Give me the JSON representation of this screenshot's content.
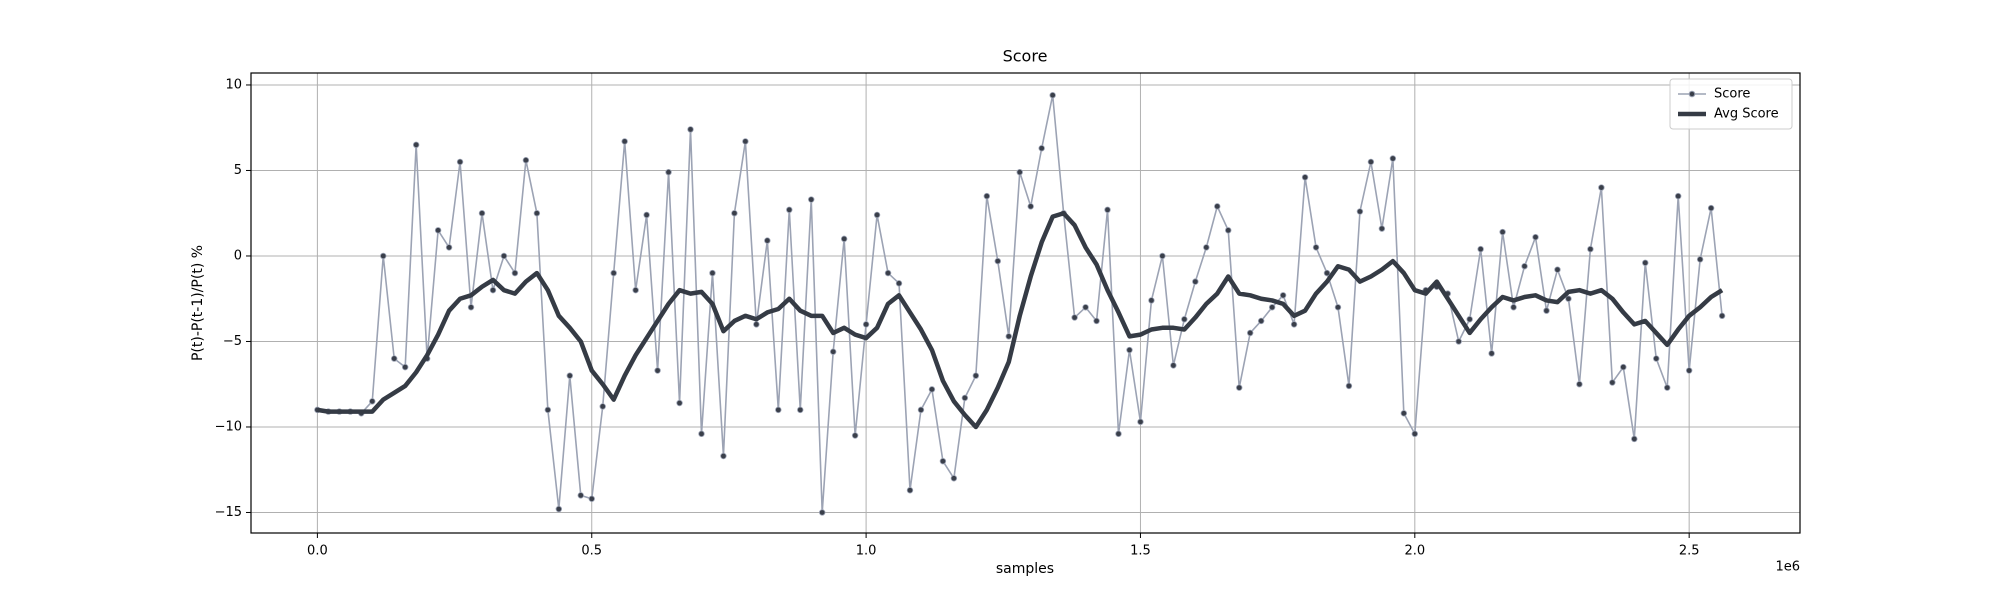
{
  "chart_data": {
    "type": "line",
    "title": "Score",
    "xlabel": "samples",
    "ylabel": "P(t)-P(t-1)/P(t) %",
    "x_offset_label": "1e6",
    "xlim": [
      -121000,
      2702000
    ],
    "ylim": [
      -16.2,
      10.7
    ],
    "xticks": [
      {
        "value": 0,
        "label": "0.0"
      },
      {
        "value": 500000,
        "label": "0.5"
      },
      {
        "value": 1000000,
        "label": "1.0"
      },
      {
        "value": 1500000,
        "label": "1.5"
      },
      {
        "value": 2000000,
        "label": "2.0"
      },
      {
        "value": 2500000,
        "label": "2.5"
      }
    ],
    "yticks": [
      {
        "value": -15,
        "label": "−15"
      },
      {
        "value": -10,
        "label": "−10"
      },
      {
        "value": -5,
        "label": "−5"
      },
      0,
      5,
      10
    ],
    "grid": true,
    "legend_loc": "upper right",
    "x": [
      0,
      20000,
      40000,
      60000,
      80000,
      100000,
      120000,
      140000,
      160000,
      180000,
      200000,
      220000,
      240000,
      260000,
      280000,
      300000,
      320000,
      340000,
      360000,
      380000,
      400000,
      420000,
      440000,
      460000,
      480000,
      500000,
      520000,
      540000,
      560000,
      580000,
      600000,
      620000,
      640000,
      660000,
      680000,
      700000,
      720000,
      740000,
      760000,
      780000,
      800000,
      820000,
      840000,
      860000,
      880000,
      900000,
      920000,
      940000,
      960000,
      980000,
      1000000,
      1020000,
      1040000,
      1060000,
      1080000,
      1100000,
      1120000,
      1140000,
      1160000,
      1180000,
      1200000,
      1220000,
      1240000,
      1260000,
      1280000,
      1300000,
      1320000,
      1340000,
      1360000,
      1380000,
      1400000,
      1420000,
      1440000,
      1460000,
      1480000,
      1500000,
      1520000,
      1540000,
      1560000,
      1580000,
      1600000,
      1620000,
      1640000,
      1660000,
      1680000,
      1700000,
      1720000,
      1740000,
      1760000,
      1780000,
      1800000,
      1820000,
      1840000,
      1860000,
      1880000,
      1900000,
      1920000,
      1940000,
      1960000,
      1980000,
      2000000,
      2020000,
      2040000,
      2060000,
      2080000,
      2100000,
      2120000,
      2140000,
      2160000,
      2180000,
      2200000,
      2220000,
      2240000,
      2260000,
      2280000,
      2300000,
      2320000,
      2340000,
      2360000,
      2380000,
      2400000,
      2420000,
      2440000,
      2460000,
      2480000,
      2500000,
      2520000,
      2540000,
      2560000
    ],
    "series": [
      {
        "name": "Score",
        "color": "#9ca3b4",
        "marker_color": "#3a3f4a",
        "marker": true,
        "values": [
          -9,
          -9.1,
          -9.1,
          -9.1,
          -9.2,
          -8.5,
          0,
          -6,
          -6.5,
          6.5,
          -6,
          1.5,
          0.5,
          5.5,
          -3,
          2.5,
          -2,
          0,
          -1,
          5.6,
          2.5,
          -9,
          -14.8,
          -7,
          -14,
          -14.2,
          -8.8,
          -1,
          6.7,
          -2,
          2.4,
          -6.7,
          4.9,
          -8.6,
          7.4,
          -10.4,
          -1,
          -11.7,
          2.5,
          6.7,
          -4,
          0.9,
          -9,
          2.7,
          -9,
          3.3,
          -15,
          -5.6,
          1,
          -10.5,
          -4,
          2.4,
          -1,
          -1.6,
          -13.7,
          -9,
          -7.8,
          -12,
          -13,
          -8.3,
          -7,
          3.5,
          -0.3,
          -4.7,
          4.9,
          2.9,
          6.3,
          9.4,
          2.5,
          -3.6,
          -3,
          -3.8,
          2.7,
          -10.4,
          -5.5,
          -9.7,
          -2.6,
          0,
          -6.4,
          -3.7,
          -1.5,
          0.5,
          2.9,
          1.5,
          -7.7,
          -4.5,
          -3.8,
          -3,
          -2.3,
          -4,
          4.6,
          0.5,
          -1,
          -3,
          -7.6,
          2.6,
          5.5,
          1.6,
          5.7,
          -9.2,
          -10.4,
          -2,
          -1.8,
          -2.2,
          -5,
          -3.7,
          0.4,
          -5.7,
          1.4,
          -3,
          -0.6,
          1.1,
          -3.2,
          -0.8,
          -2.5,
          -7.5,
          0.4,
          4,
          -7.4,
          -6.5,
          -10.7,
          -0.4,
          -6,
          -7.7,
          3.5,
          -6.7,
          -0.2,
          2.8,
          -3.5
        ]
      },
      {
        "name": "Avg Score",
        "color": "#353b45",
        "marker": false,
        "values": [
          -9,
          -9.1,
          -9.1,
          -9.1,
          -9.1,
          -9.1,
          -8.4,
          -8,
          -7.6,
          -6.8,
          -5.8,
          -4.6,
          -3.2,
          -2.5,
          -2.3,
          -1.8,
          -1.4,
          -2,
          -2.2,
          -1.5,
          -1,
          -2,
          -3.5,
          -4.2,
          -5,
          -6.7,
          -7.5,
          -8.4,
          -7,
          -5.8,
          -4.8,
          -3.8,
          -2.8,
          -2,
          -2.2,
          -2.1,
          -2.8,
          -4.4,
          -3.8,
          -3.5,
          -3.7,
          -3.3,
          -3.1,
          -2.5,
          -3.2,
          -3.5,
          -3.5,
          -4.5,
          -4.2,
          -4.6,
          -4.8,
          -4.2,
          -2.8,
          -2.3,
          -3.3,
          -4.3,
          -5.5,
          -7.3,
          -8.5,
          -9.3,
          -10,
          -9,
          -7.7,
          -6.2,
          -3.5,
          -1.2,
          0.8,
          2.3,
          2.5,
          1.8,
          0.5,
          -0.5,
          -2,
          -3.3,
          -4.7,
          -4.6,
          -4.3,
          -4.2,
          -4.2,
          -4.3,
          -3.6,
          -2.8,
          -2.2,
          -1.2,
          -2.2,
          -2.3,
          -2.5,
          -2.6,
          -2.8,
          -3.5,
          -3.2,
          -2.2,
          -1.5,
          -0.6,
          -0.8,
          -1.5,
          -1.2,
          -0.8,
          -0.3,
          -1,
          -2,
          -2.2,
          -1.5,
          -2.5,
          -3.5,
          -4.5,
          -3.7,
          -3,
          -2.4,
          -2.6,
          -2.4,
          -2.3,
          -2.6,
          -2.7,
          -2.1,
          -2,
          -2.2,
          -2,
          -2.5,
          -3.3,
          -4,
          -3.8,
          -4.5,
          -5.2,
          -4.3,
          -3.5,
          -3,
          -2.4,
          -2
        ]
      }
    ]
  }
}
